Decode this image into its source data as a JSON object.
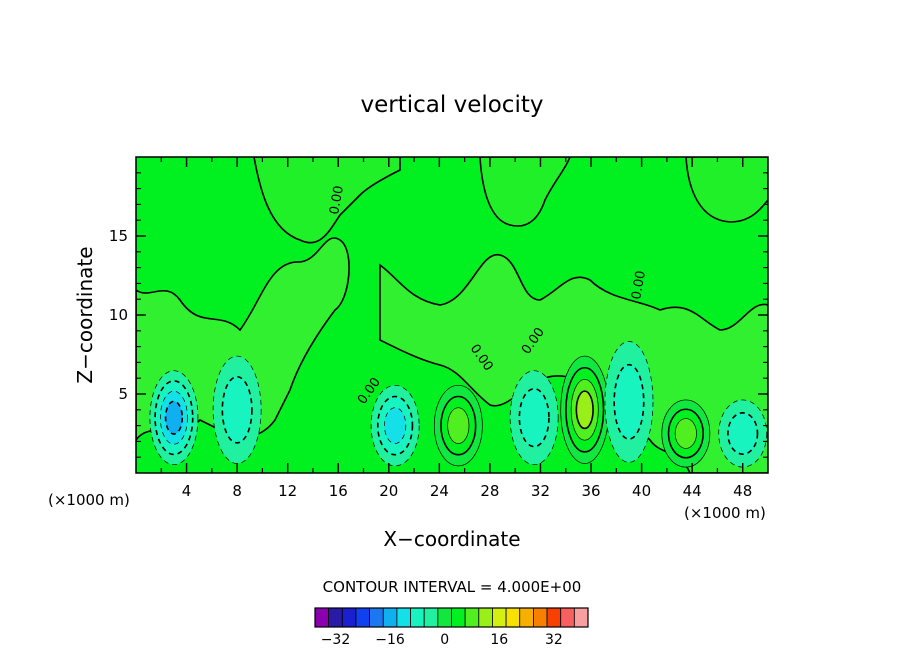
{
  "chart_data": {
    "type": "heatmap",
    "title": "vertical velocity",
    "xlabel": "X−coordinate",
    "ylabel": "Z−coordinate",
    "x_unit_left": "(×1000 m)",
    "x_unit_right": "(×1000 m)",
    "xlim": [
      0,
      50
    ],
    "ylim": [
      0,
      20
    ],
    "x_ticks": [
      4,
      8,
      12,
      16,
      20,
      24,
      28,
      32,
      36,
      40,
      44,
      48
    ],
    "y_ticks": [
      5,
      10,
      15
    ],
    "contour_note": "CONTOUR INTERVAL = 4.000E+00",
    "colorbar_ticks": [
      -32,
      -16,
      0,
      16,
      32
    ],
    "colorbar_levels": [
      -36,
      -32,
      -28,
      -24,
      -20,
      -16,
      -12,
      -8,
      -4,
      0,
      4,
      8,
      12,
      16,
      20,
      24,
      28,
      32,
      36,
      40
    ],
    "colorbar_colors": [
      "#8a00b0",
      "#2a1aa8",
      "#1a20d0",
      "#1040f0",
      "#1c78f0",
      "#10b0f0",
      "#14e0e8",
      "#18f4c0",
      "#20f0a0",
      "#10e840",
      "#00f020",
      "#50f020",
      "#98f018",
      "#d4f010",
      "#f8e000",
      "#f8b000",
      "#f88000",
      "#f84000",
      "#f86060",
      "#f8a0a0"
    ],
    "contour_labels": [
      "0.00",
      "0.00",
      "0.00",
      "0.00",
      "0.00"
    ],
    "cells": [
      {
        "x": 3,
        "z": 3.5,
        "w": -14
      },
      {
        "x": 8,
        "z": 4,
        "w": -6
      },
      {
        "x": 20.5,
        "z": 3,
        "w": -10
      },
      {
        "x": 25.5,
        "z": 3,
        "w": 9
      },
      {
        "x": 31.5,
        "z": 3.5,
        "w": -5
      },
      {
        "x": 35.5,
        "z": 4,
        "w": 15
      },
      {
        "x": 39,
        "z": 4.5,
        "w": -7
      },
      {
        "x": 43.5,
        "z": 2.5,
        "w": 9
      },
      {
        "x": 48,
        "z": 2.5,
        "w": -6
      }
    ]
  }
}
